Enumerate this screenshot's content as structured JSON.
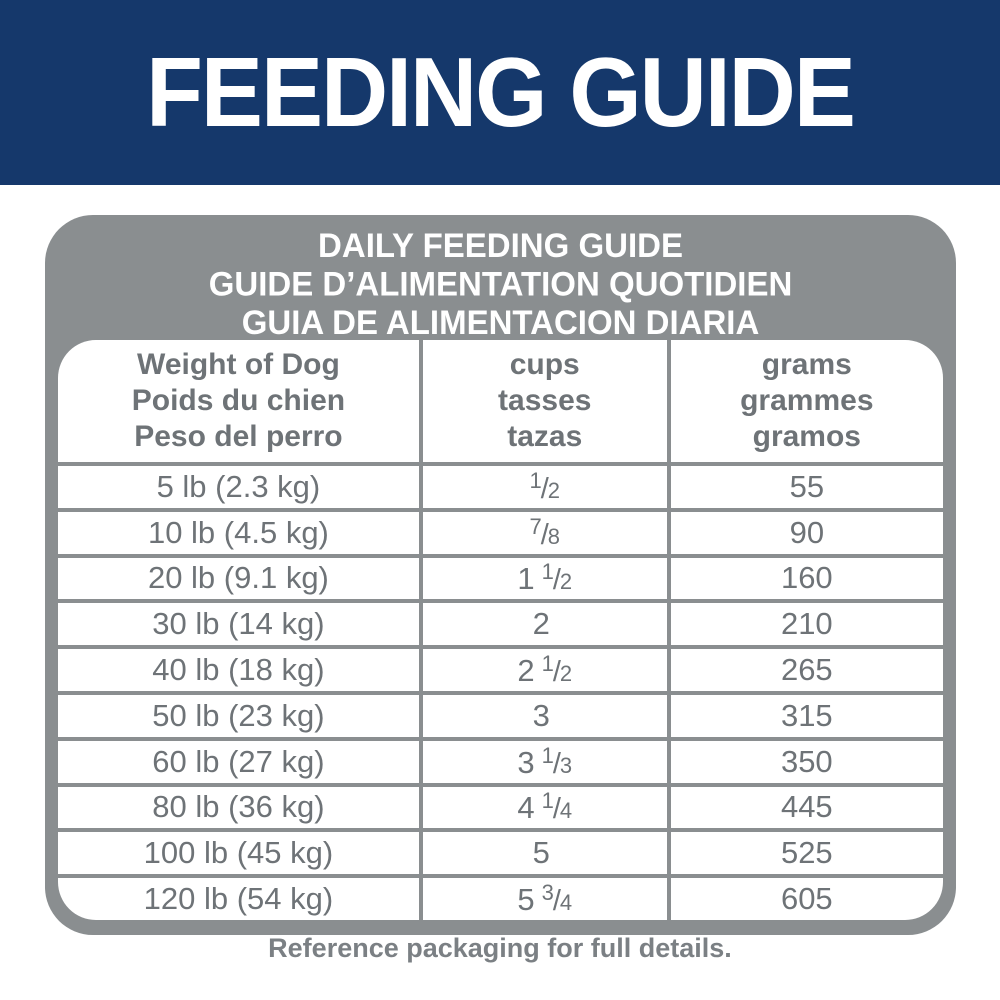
{
  "banner": {
    "title": "FEEDING GUIDE"
  },
  "panel": {
    "title_lines": [
      "DAILY FEEDING GUIDE",
      "GUIDE D’ALIMENTATION QUOTIDIEN",
      "GUIA DE ALIMENTACION DIARIA"
    ]
  },
  "table": {
    "columns": [
      {
        "lines": [
          "Weight of Dog",
          "Poids du chien",
          "Peso del perro"
        ]
      },
      {
        "lines": [
          "cups",
          "tasses",
          "tazas"
        ]
      },
      {
        "lines": [
          "grams",
          "grammes",
          "gramos"
        ]
      }
    ],
    "rows": [
      {
        "weight": "5 lb (2.3 kg)",
        "cups": {
          "whole": "",
          "num": "1",
          "den": "2"
        },
        "grams": "55"
      },
      {
        "weight": "10 lb (4.5 kg)",
        "cups": {
          "whole": "",
          "num": "7",
          "den": "8"
        },
        "grams": "90"
      },
      {
        "weight": "20 lb (9.1 kg)",
        "cups": {
          "whole": "1",
          "num": "1",
          "den": "2"
        },
        "grams": "160"
      },
      {
        "weight": "30 lb (14 kg)",
        "cups": {
          "whole": "2"
        },
        "grams": "210"
      },
      {
        "weight": "40 lb (18 kg)",
        "cups": {
          "whole": "2",
          "num": "1",
          "den": "2"
        },
        "grams": "265"
      },
      {
        "weight": "50 lb (23 kg)",
        "cups": {
          "whole": "3"
        },
        "grams": "315"
      },
      {
        "weight": "60 lb (27 kg)",
        "cups": {
          "whole": "3",
          "num": "1",
          "den": "3"
        },
        "grams": "350"
      },
      {
        "weight": "80 lb (36 kg)",
        "cups": {
          "whole": "4",
          "num": "1",
          "den": "4"
        },
        "grams": "445"
      },
      {
        "weight": "100 lb (45 kg)",
        "cups": {
          "whole": "5"
        },
        "grams": "525"
      },
      {
        "weight": "120 lb (54 kg)",
        "cups": {
          "whole": "5",
          "num": "3",
          "den": "4"
        },
        "grams": "605"
      }
    ]
  },
  "footer": {
    "note": "Reference packaging for full details."
  },
  "colors": {
    "banner_navy": "#15386B",
    "panel_gray": "#8A8E90",
    "cell_text_gray": "#6E7377",
    "footer_gray": "#7B8084",
    "white": "#FFFFFF"
  }
}
